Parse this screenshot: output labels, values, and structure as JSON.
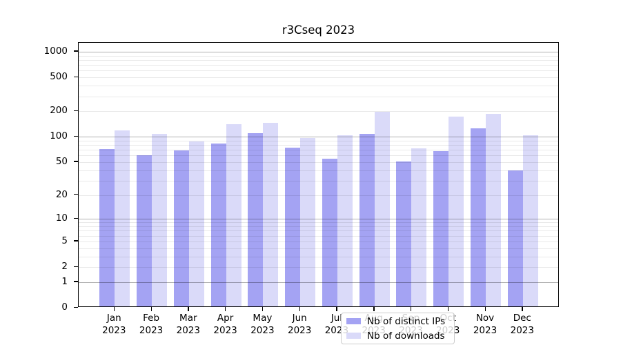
{
  "title": "r3Cseq 2023",
  "chart_data": {
    "type": "bar",
    "title": "r3Cseq 2023",
    "categories": [
      "Jan 2023",
      "Feb 2023",
      "Mar 2023",
      "Apr 2023",
      "May 2023",
      "Jun 2023",
      "Jul 2023",
      "Aug 2023",
      "Sep 2023",
      "Oct 2023",
      "Nov 2023",
      "Dec 2023"
    ],
    "month_labels": [
      "Jan",
      "Feb",
      "Mar",
      "Apr",
      "May",
      "Jun",
      "Jul",
      "Aug",
      "Sep",
      "Oct",
      "Nov",
      "Dec"
    ],
    "year_label": "2023",
    "series": [
      {
        "name": "Nb of distinct IPs",
        "color": "#a4a3f3",
        "values": [
          69,
          58,
          66,
          80,
          107,
          72,
          53,
          105,
          49,
          65,
          120,
          38
        ]
      },
      {
        "name": "Nb of downloads",
        "color": "#dadaf9",
        "values": [
          115,
          105,
          84,
          136,
          141,
          93,
          100,
          190,
          70,
          166,
          181,
          100
        ]
      }
    ],
    "y_scale": "log10(1+y)",
    "y_ticks": [
      0,
      1,
      2,
      5,
      10,
      20,
      50,
      100,
      200,
      500,
      1000
    ],
    "ylim": [
      0,
      1270
    ],
    "grid": "on",
    "grid_major": [
      1,
      10,
      100,
      1000
    ],
    "grid_minor_mantissas": [
      2,
      3,
      4,
      5,
      6,
      7,
      8,
      9
    ],
    "grid_minor_decades": [
      1,
      10,
      100
    ],
    "legend_position": "lower center",
    "xlabel": "",
    "ylabel": ""
  },
  "legend": {
    "items": [
      {
        "label": "Nb of distinct IPs"
      },
      {
        "label": "Nb of downloads"
      }
    ]
  },
  "colors": {
    "bar_distinct_ips": "#a4a3f3",
    "bar_downloads": "#dadaf9",
    "grid_major": "#b0b0b0",
    "grid_minor": "#e8e8e8",
    "axis": "#000000",
    "legend_border": "#cccccc"
  }
}
